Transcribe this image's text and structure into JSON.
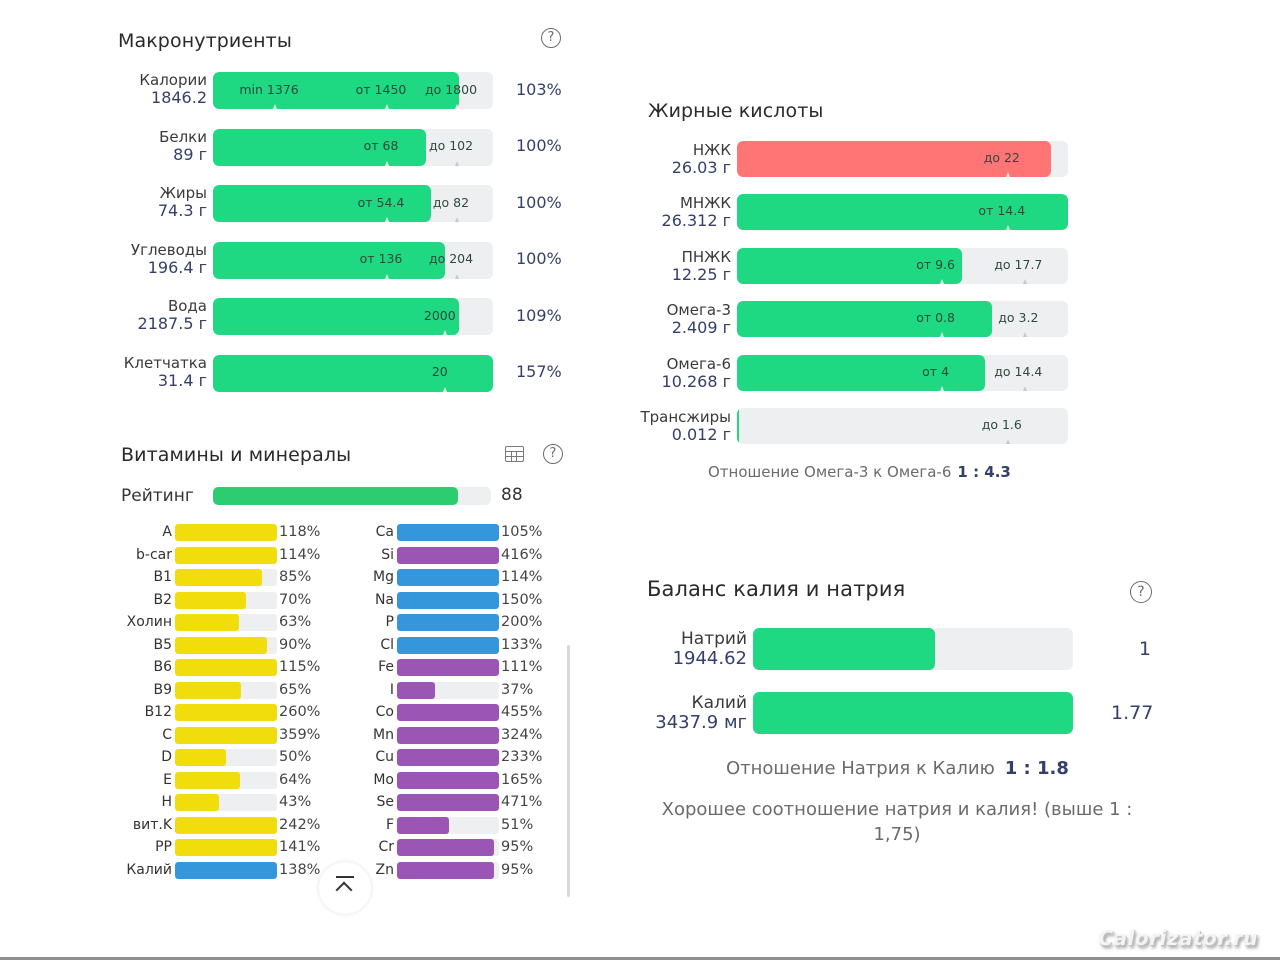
{
  "colors": {
    "green": "#1fd882",
    "red": "#ff7575",
    "yellow": "#f1dc0c",
    "blue": "#3597db",
    "purple": "#9b55b5",
    "rating_green": "#2ecc71",
    "track": "#eeeff1",
    "value_navy": "#34406b"
  },
  "macros": {
    "title": "Макронутриенты",
    "help_icon": "question-circle-icon",
    "rows": [
      {
        "name": "Калории",
        "value": "1846.2",
        "percent": "103%",
        "fill": 0.88,
        "color": "green",
        "marks": [
          {
            "text": "min 1376",
            "pos": 0.2
          },
          {
            "text": "от 1450",
            "pos": 0.6
          },
          {
            "text": "до 1800",
            "pos": 0.85
          }
        ]
      },
      {
        "name": "Белки",
        "value": "89 г",
        "percent": "100%",
        "fill": 0.76,
        "color": "green",
        "marks": [
          {
            "text": "от 68",
            "pos": 0.6
          },
          {
            "text": "до 102",
            "pos": 0.85
          }
        ]
      },
      {
        "name": "Жиры",
        "value": "74.3 г",
        "percent": "100%",
        "fill": 0.78,
        "color": "green",
        "marks": [
          {
            "text": "от 54.4",
            "pos": 0.6
          },
          {
            "text": "до 82",
            "pos": 0.85
          }
        ]
      },
      {
        "name": "Углеводы",
        "value": "196.4 г",
        "percent": "100%",
        "fill": 0.83,
        "color": "green",
        "marks": [
          {
            "text": "от 136",
            "pos": 0.6
          },
          {
            "text": "до 204",
            "pos": 0.85
          }
        ]
      },
      {
        "name": "Вода",
        "value": "2187.5 г",
        "percent": "109%",
        "fill": 0.88,
        "color": "green",
        "marks": [
          {
            "text": "2000",
            "pos": 0.81
          }
        ]
      },
      {
        "name": "Клетчатка",
        "value": "31.4 г",
        "percent": "157%",
        "fill": 1.0,
        "color": "green",
        "marks": [
          {
            "text": "20",
            "pos": 0.81
          }
        ]
      }
    ]
  },
  "vitamins": {
    "title": "Витамины и минералы",
    "table_icon": "table-grid-icon",
    "help_icon": "question-circle-icon",
    "rating": {
      "label": "Рейтинг",
      "value": "88",
      "fill": 0.88
    },
    "left": [
      {
        "name": "A",
        "percent": "118%",
        "fill": 1.0,
        "color": "yellow"
      },
      {
        "name": "b-car",
        "percent": "114%",
        "fill": 1.0,
        "color": "yellow"
      },
      {
        "name": "B1",
        "percent": "85%",
        "fill": 0.85,
        "color": "yellow"
      },
      {
        "name": "B2",
        "percent": "70%",
        "fill": 0.7,
        "color": "yellow"
      },
      {
        "name": "Холин",
        "percent": "63%",
        "fill": 0.63,
        "color": "yellow"
      },
      {
        "name": "B5",
        "percent": "90%",
        "fill": 0.9,
        "color": "yellow"
      },
      {
        "name": "B6",
        "percent": "115%",
        "fill": 1.0,
        "color": "yellow"
      },
      {
        "name": "B9",
        "percent": "65%",
        "fill": 0.65,
        "color": "yellow"
      },
      {
        "name": "B12",
        "percent": "260%",
        "fill": 1.0,
        "color": "yellow"
      },
      {
        "name": "C",
        "percent": "359%",
        "fill": 1.0,
        "color": "yellow"
      },
      {
        "name": "D",
        "percent": "50%",
        "fill": 0.5,
        "color": "yellow"
      },
      {
        "name": "E",
        "percent": "64%",
        "fill": 0.64,
        "color": "yellow"
      },
      {
        "name": "H",
        "percent": "43%",
        "fill": 0.43,
        "color": "yellow"
      },
      {
        "name": "вит.K",
        "percent": "242%",
        "fill": 1.0,
        "color": "yellow"
      },
      {
        "name": "PP",
        "percent": "141%",
        "fill": 1.0,
        "color": "yellow"
      },
      {
        "name": "Калий",
        "percent": "138%",
        "fill": 1.0,
        "color": "blue"
      }
    ],
    "right": [
      {
        "name": "Ca",
        "percent": "105%",
        "fill": 1.0,
        "color": "blue"
      },
      {
        "name": "Si",
        "percent": "416%",
        "fill": 1.0,
        "color": "purple"
      },
      {
        "name": "Mg",
        "percent": "114%",
        "fill": 1.0,
        "color": "blue"
      },
      {
        "name": "Na",
        "percent": "150%",
        "fill": 1.0,
        "color": "blue"
      },
      {
        "name": "P",
        "percent": "200%",
        "fill": 1.0,
        "color": "blue"
      },
      {
        "name": "Cl",
        "percent": "133%",
        "fill": 1.0,
        "color": "blue"
      },
      {
        "name": "Fe",
        "percent": "111%",
        "fill": 1.0,
        "color": "purple"
      },
      {
        "name": "I",
        "percent": "37%",
        "fill": 0.37,
        "color": "purple"
      },
      {
        "name": "Co",
        "percent": "455%",
        "fill": 1.0,
        "color": "purple"
      },
      {
        "name": "Mn",
        "percent": "324%",
        "fill": 1.0,
        "color": "purple"
      },
      {
        "name": "Cu",
        "percent": "233%",
        "fill": 1.0,
        "color": "purple"
      },
      {
        "name": "Mo",
        "percent": "165%",
        "fill": 1.0,
        "color": "purple"
      },
      {
        "name": "Se",
        "percent": "471%",
        "fill": 1.0,
        "color": "purple"
      },
      {
        "name": "F",
        "percent": "51%",
        "fill": 0.51,
        "color": "purple"
      },
      {
        "name": "Cr",
        "percent": "95%",
        "fill": 0.95,
        "color": "purple"
      },
      {
        "name": "Zn",
        "percent": "95%",
        "fill": 0.95,
        "color": "purple"
      }
    ],
    "scroll_top_icon": "chevron-up-bar-icon"
  },
  "fatty_acids": {
    "title": "Жирные кислоты",
    "rows": [
      {
        "name": "НЖК",
        "value": "26.03 г",
        "fill": 0.95,
        "color": "red",
        "marks": [
          {
            "text": "до 22",
            "pos": 0.8
          }
        ]
      },
      {
        "name": "МНЖК",
        "value": "26.312 г",
        "fill": 1.0,
        "color": "green",
        "marks": [
          {
            "text": "от 14.4",
            "pos": 0.8
          }
        ]
      },
      {
        "name": "ПНЖК",
        "value": "12.25 г",
        "fill": 0.68,
        "color": "green",
        "marks": [
          {
            "text": "от 9.6",
            "pos": 0.6
          },
          {
            "text": "до 17.7",
            "pos": 0.85
          }
        ]
      },
      {
        "name": "Омега-3",
        "value": "2.409 г",
        "fill": 0.77,
        "color": "green",
        "marks": [
          {
            "text": "от 0.8",
            "pos": 0.6
          },
          {
            "text": "до 3.2",
            "pos": 0.85
          }
        ]
      },
      {
        "name": "Омега-6",
        "value": "10.268 г",
        "fill": 0.75,
        "color": "green",
        "marks": [
          {
            "text": "от 4",
            "pos": 0.6
          },
          {
            "text": "до 14.4",
            "pos": 0.85
          }
        ]
      },
      {
        "name": "Трансжиры",
        "value": "0.012 г",
        "fill": 0.006,
        "color": "green",
        "marks": [
          {
            "text": "до 1.6",
            "pos": 0.8
          }
        ]
      }
    ],
    "ratio_label": "Отношение Омега-3 к Омега-6",
    "ratio_value": "1 : 4.3"
  },
  "potassium_sodium": {
    "title": "Баланс калия и натрия",
    "help_icon": "question-circle-icon",
    "rows": [
      {
        "name": "Натрий",
        "value": "1944.62",
        "ratio": "1",
        "fill": 0.57,
        "color": "green"
      },
      {
        "name": "Калий",
        "value": "3437.9 мг",
        "ratio": "1.77",
        "fill": 1.0,
        "color": "green"
      }
    ],
    "ratio_label": "Отношение Натрия к Калию",
    "ratio_value": "1 : 1.8",
    "note": "Хорошее соотношение натрия и калия! (выше 1 : 1,75)"
  },
  "watermark": "Calorizator.ru"
}
